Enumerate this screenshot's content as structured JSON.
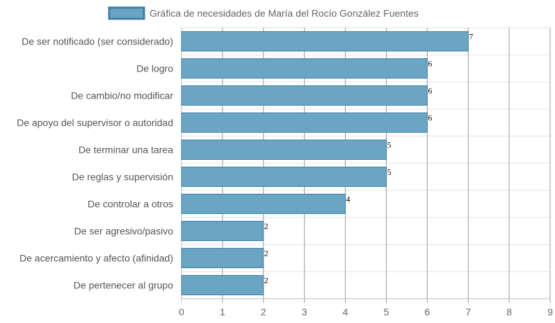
{
  "chart_data": {
    "type": "bar",
    "orientation": "horizontal",
    "legend": {
      "label": "Gráfica de necesidades de María del Rocío González Fuentes",
      "position": "top"
    },
    "categories": [
      "De ser notificado (ser considerado)",
      "De logro",
      "De cambio/no modificar",
      "De apoyo del supervisor o autoridad",
      "De terminar una tarea",
      "De reglas y supervisión",
      "De controlar a otros",
      "De ser agresivo/pasivo",
      "De acercamiento y afecto (afinidad)",
      "De pertenecer al grupo"
    ],
    "series": [
      {
        "name": "Gráfica de necesidades de María del Rocío González Fuentes",
        "values": [
          7,
          6,
          6,
          6,
          5,
          5,
          4,
          2,
          2,
          2
        ],
        "color": "#6ba5c4",
        "border_color": "#3d7fa6"
      }
    ],
    "xlim": [
      0,
      9
    ],
    "x_ticks": [
      "0",
      "1",
      "2",
      "3",
      "4",
      "5",
      "6",
      "7",
      "8",
      "9"
    ],
    "grid": true,
    "data_labels": true
  }
}
